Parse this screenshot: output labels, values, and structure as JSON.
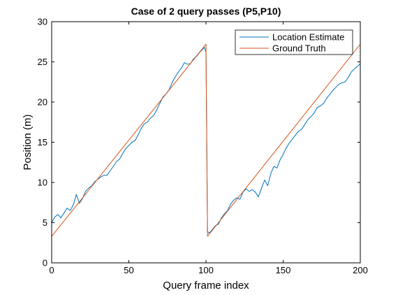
{
  "chart_data": {
    "type": "line",
    "title": "Case of 2 query passes (P5,P10)",
    "xlabel": "Query frame index",
    "ylabel": "Position (m)",
    "xlim": [
      0,
      200
    ],
    "ylim": [
      0,
      30
    ],
    "xticks": [
      0,
      50,
      100,
      150,
      200
    ],
    "yticks": [
      0,
      5,
      10,
      15,
      20,
      25,
      30
    ],
    "grid": false,
    "legend_position": "top-right",
    "series": [
      {
        "name": "Location Estimate",
        "color": "#0072BD",
        "x": [
          0,
          2,
          4,
          6,
          8,
          10,
          12,
          14,
          16,
          18,
          20,
          22,
          24,
          26,
          28,
          30,
          32,
          34,
          36,
          38,
          40,
          42,
          44,
          46,
          48,
          50,
          52,
          54,
          56,
          58,
          60,
          62,
          64,
          66,
          68,
          70,
          72,
          74,
          76,
          78,
          80,
          82,
          84,
          86,
          88,
          90,
          92,
          94,
          96,
          98,
          99,
          100,
          101,
          102,
          104,
          106,
          108,
          110,
          112,
          114,
          116,
          118,
          120,
          122,
          124,
          126,
          128,
          130,
          132,
          134,
          136,
          138,
          140,
          142,
          144,
          146,
          148,
          150,
          152,
          154,
          156,
          158,
          160,
          162,
          164,
          166,
          168,
          170,
          172,
          174,
          176,
          178,
          180,
          182,
          184,
          186,
          188,
          190,
          192,
          194,
          196,
          198,
          200
        ],
        "y": [
          5.0,
          5.7,
          6.0,
          5.6,
          6.2,
          6.8,
          6.5,
          7.2,
          8.5,
          7.4,
          8.0,
          8.9,
          9.3,
          9.6,
          10.1,
          10.4,
          10.7,
          10.9,
          10.9,
          11.5,
          12.0,
          12.6,
          12.9,
          13.6,
          14.2,
          14.6,
          15.0,
          15.2,
          15.9,
          16.7,
          17.3,
          17.5,
          18.0,
          18.3,
          19.0,
          19.8,
          20.6,
          21.0,
          21.5,
          22.4,
          23.1,
          23.7,
          24.2,
          24.9,
          24.7,
          24.8,
          25.4,
          25.7,
          26.2,
          26.6,
          26.8,
          26.2,
          3.9,
          3.7,
          4.1,
          4.6,
          4.8,
          5.6,
          6.1,
          6.5,
          7.3,
          7.8,
          8.1,
          7.9,
          8.8,
          9.2,
          8.9,
          9.1,
          8.8,
          8.2,
          9.3,
          10.3,
          9.6,
          11.1,
          12.0,
          11.8,
          12.8,
          13.5,
          14.3,
          14.9,
          15.4,
          15.9,
          16.4,
          16.6,
          17.2,
          17.8,
          18.2,
          18.6,
          19.3,
          19.5,
          19.8,
          20.4,
          20.9,
          21.4,
          21.8,
          22.2,
          22.4,
          22.5,
          23.0,
          23.7,
          24.1,
          24.4,
          24.8
        ]
      },
      {
        "name": "Ground Truth",
        "color": "#D95319",
        "x": [
          0,
          100,
          101,
          200
        ],
        "y": [
          3.3,
          27.2,
          3.3,
          27.2
        ]
      }
    ]
  }
}
